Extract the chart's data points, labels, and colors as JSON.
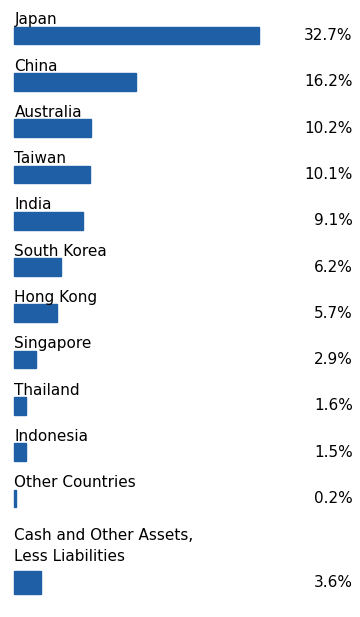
{
  "categories": [
    "Japan",
    "China",
    "Australia",
    "Taiwan",
    "India",
    "South Korea",
    "Hong Kong",
    "Singapore",
    "Thailand",
    "Indonesia",
    "Other Countries",
    "Cash and Other Assets,\nLess Liabilities"
  ],
  "values": [
    32.7,
    16.2,
    10.2,
    10.1,
    9.1,
    6.2,
    5.7,
    2.9,
    1.6,
    1.5,
    0.2,
    3.6
  ],
  "labels": [
    "32.7%",
    "16.2%",
    "10.2%",
    "10.1%",
    "9.1%",
    "6.2%",
    "5.7%",
    "2.9%",
    "1.6%",
    "1.5%",
    "0.2%",
    "3.6%"
  ],
  "bar_color": "#1F5FA6",
  "background_color": "#ffffff",
  "label_fontsize": 11,
  "value_fontsize": 11,
  "max_val": 32.7
}
